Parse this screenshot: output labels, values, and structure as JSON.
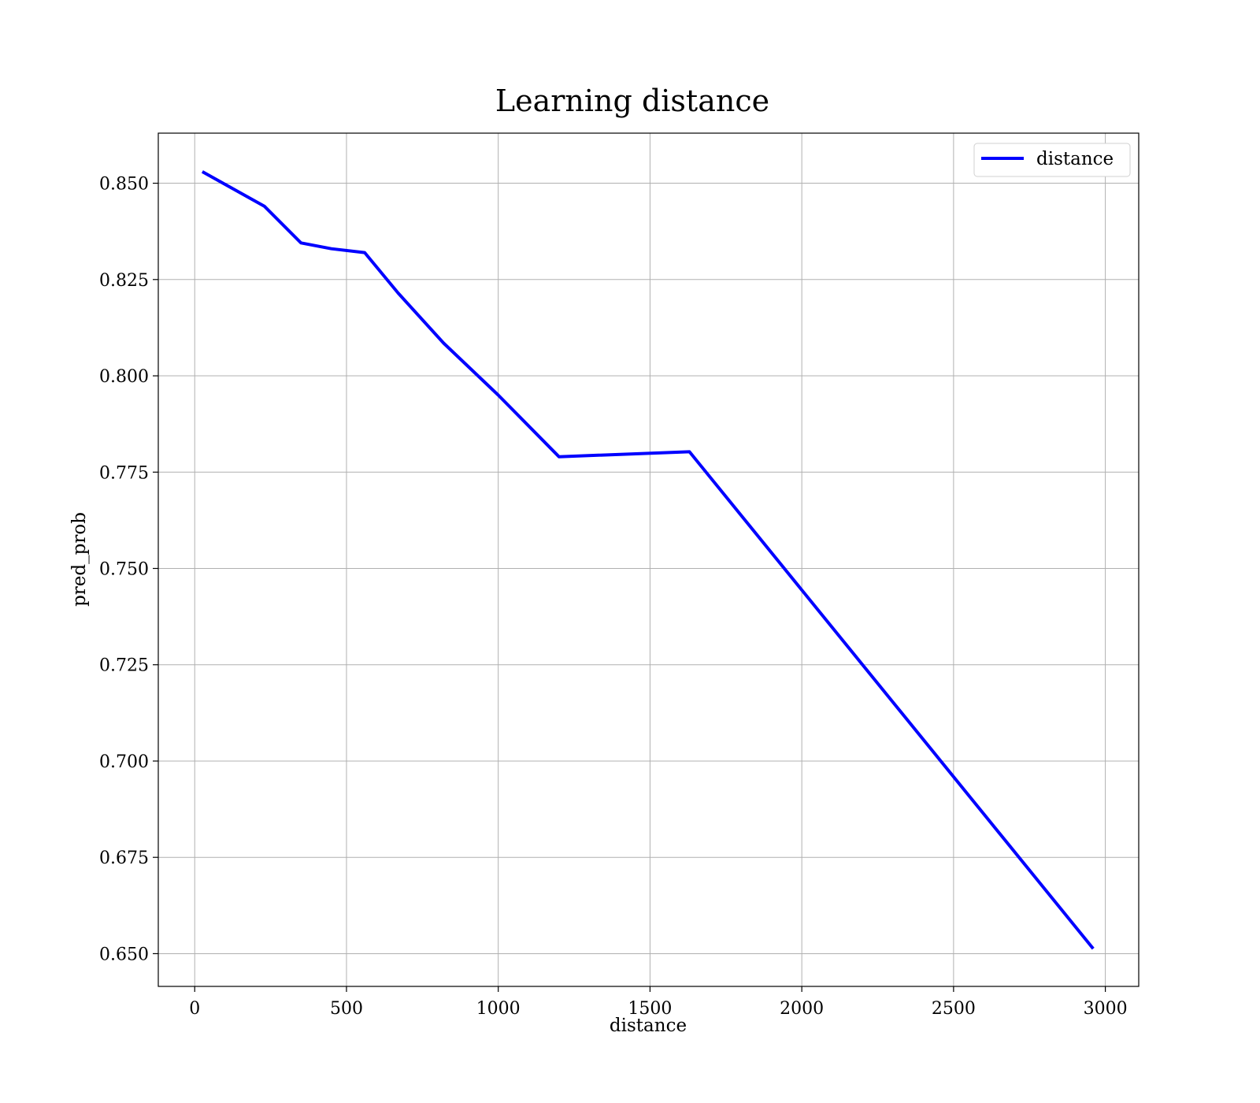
{
  "chart_data": {
    "type": "line",
    "title": "Learning distance",
    "xlabel": "distance",
    "ylabel": "pred_prob",
    "xlim": [
      -120,
      3110
    ],
    "ylim": [
      0.6415,
      0.863
    ],
    "xticks": [
      0,
      500,
      1000,
      1500,
      2000,
      2500,
      3000
    ],
    "yticks": [
      0.65,
      0.675,
      0.7,
      0.725,
      0.75,
      0.775,
      0.8,
      0.825,
      0.85
    ],
    "xtick_labels": [
      "0",
      "500",
      "1000",
      "1500",
      "2000",
      "2500",
      "3000"
    ],
    "ytick_labels": [
      "0.650",
      "0.675",
      "0.700",
      "0.725",
      "0.750",
      "0.775",
      "0.800",
      "0.825",
      "0.850"
    ],
    "grid": true,
    "legend": {
      "placement": "top-right",
      "entries": [
        "distance"
      ]
    },
    "series": [
      {
        "name": "distance",
        "color": "#0000ff",
        "x": [
          25,
          230,
          350,
          450,
          560,
          670,
          820,
          1000,
          1200,
          1630,
          2960
        ],
        "y": [
          0.853,
          0.844,
          0.8345,
          0.833,
          0.832,
          0.8215,
          0.8085,
          0.795,
          0.779,
          0.7803,
          0.6513
        ]
      }
    ]
  }
}
